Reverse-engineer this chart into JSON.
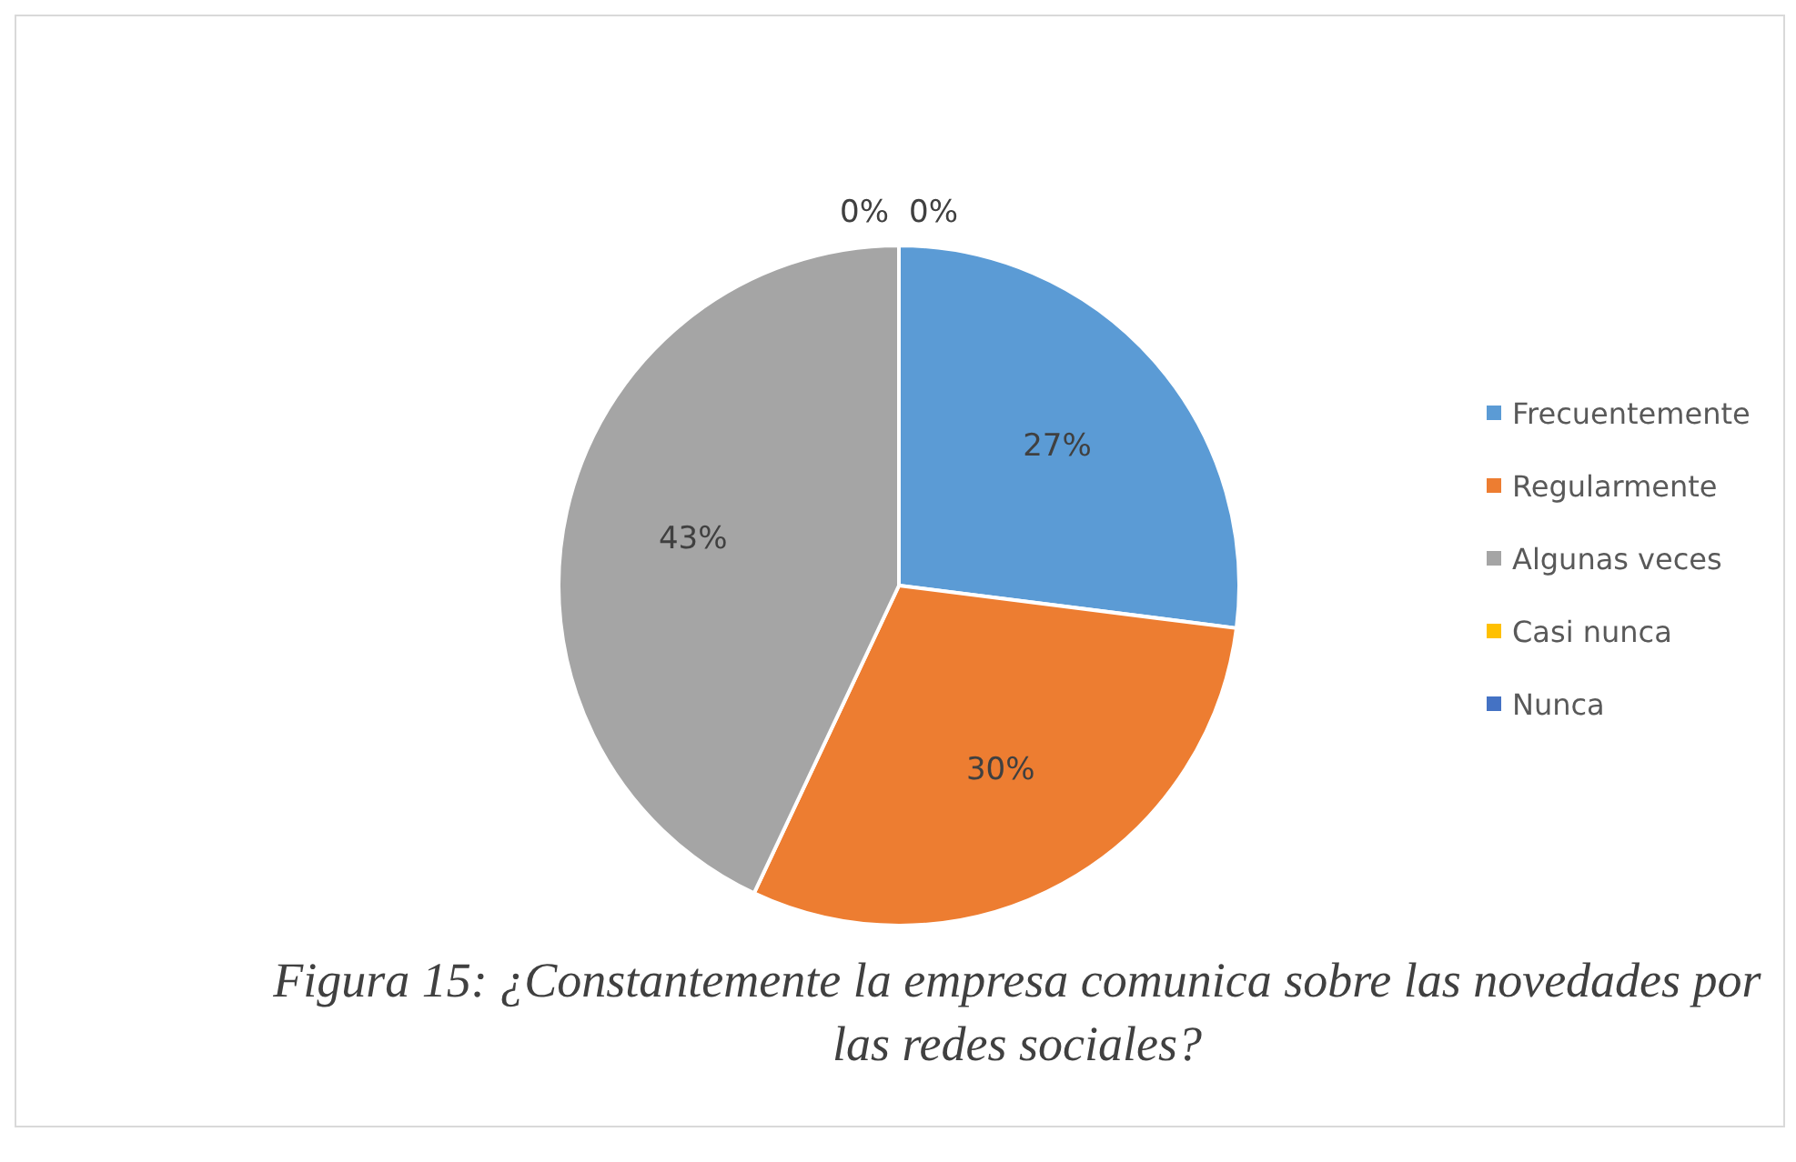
{
  "chart_data": {
    "type": "pie",
    "title": "Figura 15: ¿Constantemente la empresa comunica sobre las novedades por las redes sociales?",
    "categories": [
      "Frecuentemente",
      "Regularmente",
      "Algunas veces",
      "Casi nunca",
      "Nunca"
    ],
    "values": [
      27,
      30,
      43,
      0,
      0
    ],
    "value_labels": [
      "27%",
      "30%",
      "43%",
      "0%",
      "0%"
    ],
    "colors": [
      "#5b9bd5",
      "#ed7d31",
      "#a5a5a5",
      "#ffc000",
      "#4472c4"
    ],
    "legend": "right"
  }
}
